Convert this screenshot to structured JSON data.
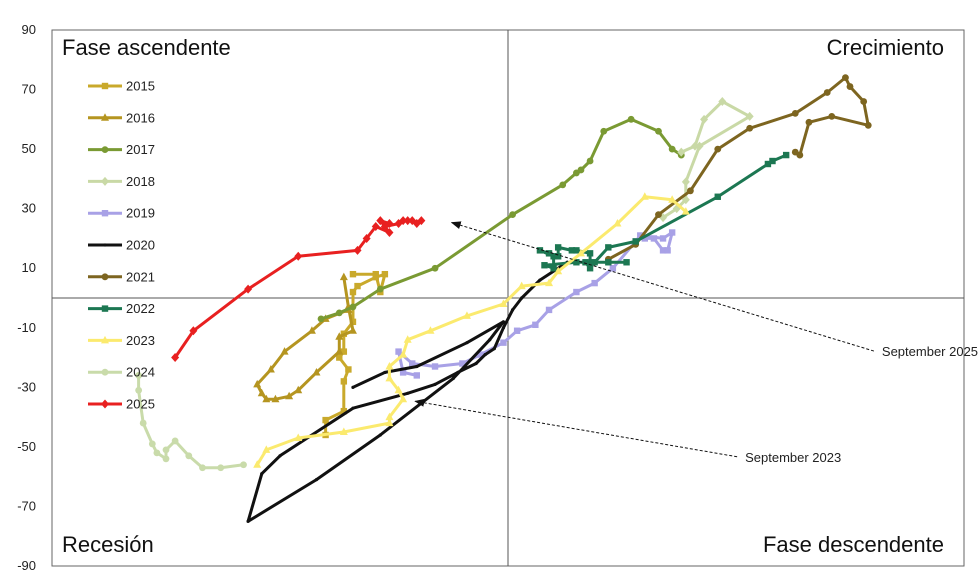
{
  "chart_data": {
    "type": "line",
    "xlabel": "",
    "ylabel": "",
    "ylim": [
      -90,
      90
    ],
    "xlim": [
      -100,
      100
    ],
    "yticks": [
      90,
      70,
      50,
      30,
      10,
      -10,
      -30,
      -50,
      -70,
      -90
    ],
    "grid": false,
    "legend": "left",
    "quadrant_labels": {
      "top_left": "Fase ascendente",
      "top_right": "Crecimiento",
      "bottom_left": "Recesión",
      "bottom_right": "Fase descendente"
    },
    "annotations": [
      {
        "text": "September 2025",
        "x": 82,
        "y": -19.5,
        "target": [
          -13,
          26
        ]
      },
      {
        "text": "September 2023",
        "x": 52,
        "y": -55,
        "target": [
          -21,
          -34
        ]
      }
    ],
    "series": [
      {
        "name": "2015",
        "color": "#c9a92b",
        "marker": "square",
        "points": [
          [
            -34,
            8
          ],
          [
            -29,
            8
          ],
          [
            -28,
            2
          ],
          [
            -27,
            8
          ],
          [
            -29,
            7
          ],
          [
            -33,
            4
          ],
          [
            -34,
            2
          ],
          [
            -34,
            -8
          ],
          [
            -36,
            -12
          ],
          [
            -36,
            -18
          ],
          [
            -37,
            -20
          ],
          [
            -35,
            -24
          ],
          [
            -36,
            -28
          ],
          [
            -36,
            -38
          ],
          [
            -40,
            -41
          ],
          [
            -40,
            -46
          ]
        ]
      },
      {
        "name": "2016",
        "color": "#b59520",
        "marker": "triangle",
        "points": [
          [
            -36,
            7
          ],
          [
            -35,
            -3
          ],
          [
            -34,
            -11
          ],
          [
            -37,
            -13
          ],
          [
            -37,
            -18
          ],
          [
            -42,
            -25
          ],
          [
            -46,
            -31
          ],
          [
            -48,
            -33
          ],
          [
            -51,
            -34
          ],
          [
            -53,
            -34
          ],
          [
            -54,
            -32
          ],
          [
            -55,
            -29
          ],
          [
            -52,
            -24
          ],
          [
            -49,
            -18
          ],
          [
            -43,
            -11
          ],
          [
            -40,
            -7
          ],
          [
            -35,
            -4
          ]
        ]
      },
      {
        "name": "2017",
        "color": "#7a9a33",
        "marker": "circle",
        "points": [
          [
            -41,
            -7
          ],
          [
            -37,
            -5
          ],
          [
            -34,
            -3
          ],
          [
            -28,
            3
          ],
          [
            -16,
            10
          ],
          [
            1,
            28
          ],
          [
            12,
            38
          ],
          [
            15,
            42
          ],
          [
            16,
            43
          ],
          [
            18,
            46
          ],
          [
            21,
            56
          ],
          [
            27,
            60
          ],
          [
            33,
            56
          ],
          [
            36,
            50
          ],
          [
            38,
            48
          ]
        ]
      },
      {
        "name": "2018",
        "color": "#c9d9a6",
        "marker": "diamond",
        "points": [
          [
            38,
            49
          ],
          [
            41,
            51
          ],
          [
            43,
            60
          ],
          [
            47,
            66
          ],
          [
            53,
            61
          ],
          [
            42,
            51
          ],
          [
            39,
            39
          ],
          [
            39,
            33
          ],
          [
            37,
            30
          ],
          [
            34,
            27
          ]
        ]
      },
      {
        "name": "2019",
        "color": "#a8a1e6",
        "marker": "square",
        "points": [
          [
            30,
            20
          ],
          [
            32,
            20
          ],
          [
            34,
            16
          ],
          [
            35,
            16
          ],
          [
            36,
            22
          ],
          [
            34,
            20
          ],
          [
            29,
            21
          ],
          [
            28,
            19
          ],
          [
            23,
            10
          ],
          [
            19,
            5
          ],
          [
            15,
            2
          ],
          [
            9,
            -4
          ],
          [
            6,
            -9
          ],
          [
            2,
            -11
          ],
          [
            -1,
            -15
          ],
          [
            -6,
            -19
          ],
          [
            -10,
            -22
          ],
          [
            -16,
            -23
          ],
          [
            -21,
            -22
          ],
          [
            -24,
            -18
          ],
          [
            -23,
            -25
          ],
          [
            -20,
            -26
          ]
        ]
      },
      {
        "name": "2020",
        "color": "#111111",
        "marker": "dot",
        "points": [
          [
            13,
            12
          ],
          [
            7,
            6
          ],
          [
            3,
            0
          ],
          [
            1,
            -4
          ],
          [
            -1,
            -10
          ],
          [
            -3,
            -17
          ],
          [
            -5,
            -19
          ],
          [
            -7,
            -22
          ],
          [
            -11,
            -25
          ],
          [
            -16,
            -29
          ],
          [
            -22,
            -32
          ],
          [
            -34,
            -37
          ],
          [
            -50,
            -53
          ],
          [
            -54,
            -59
          ],
          [
            -57,
            -75
          ],
          [
            -42,
            -61
          ],
          [
            -28,
            -46
          ],
          [
            -12,
            -27
          ],
          [
            -4,
            -14
          ],
          [
            -1,
            -8
          ],
          [
            -9,
            -15
          ],
          [
            -20,
            -23
          ],
          [
            -27,
            -25
          ],
          [
            -34,
            -30
          ]
        ]
      },
      {
        "name": "2021",
        "color": "#7d6520",
        "marker": "circle",
        "points": [
          [
            22,
            13
          ],
          [
            28,
            18
          ],
          [
            33,
            28
          ],
          [
            40,
            36
          ],
          [
            46,
            50
          ],
          [
            53,
            57
          ],
          [
            63,
            62
          ],
          [
            70,
            69
          ],
          [
            74,
            74
          ],
          [
            75,
            71
          ],
          [
            78,
            66
          ],
          [
            79,
            58
          ],
          [
            71,
            61
          ],
          [
            66,
            59
          ],
          [
            64,
            48
          ],
          [
            63,
            49
          ]
        ]
      },
      {
        "name": "2022",
        "color": "#1c7752",
        "marker": "square",
        "points": [
          [
            61,
            48
          ],
          [
            58,
            46
          ],
          [
            57,
            45
          ],
          [
            46,
            34
          ],
          [
            28,
            19
          ],
          [
            22,
            17
          ],
          [
            19,
            12
          ],
          [
            15,
            12
          ],
          [
            8,
            11
          ],
          [
            10,
            10
          ],
          [
            10,
            14
          ],
          [
            7,
            16
          ],
          [
            9,
            15
          ],
          [
            11,
            14
          ],
          [
            11,
            17
          ],
          [
            14,
            16
          ],
          [
            15,
            16
          ],
          [
            18,
            15
          ],
          [
            18,
            10
          ],
          [
            17,
            12
          ],
          [
            22,
            12
          ],
          [
            26,
            12
          ]
        ]
      },
      {
        "name": "2023",
        "color": "#fbea6e",
        "marker": "triangle",
        "points": [
          [
            39,
            29
          ],
          [
            36,
            33
          ],
          [
            30,
            34
          ],
          [
            24,
            25
          ],
          [
            16,
            15
          ],
          [
            11,
            9
          ],
          [
            9,
            5
          ],
          [
            3,
            4
          ],
          [
            -1,
            -2
          ],
          [
            -9,
            -6
          ],
          [
            -17,
            -11
          ],
          [
            -22,
            -14
          ],
          [
            -23,
            -19
          ],
          [
            -26,
            -23
          ],
          [
            -26,
            -27
          ],
          [
            -24,
            -31
          ],
          [
            -23,
            -34
          ],
          [
            -26,
            -40
          ],
          [
            -26,
            -42
          ],
          [
            -36,
            -45
          ],
          [
            -46,
            -47
          ],
          [
            -53,
            -51
          ],
          [
            -55,
            -56
          ]
        ]
      },
      {
        "name": "2024",
        "color": "#c9dbaa",
        "marker": "circle",
        "points": [
          [
            -58,
            -56
          ],
          [
            -63,
            -57
          ],
          [
            -67,
            -57
          ],
          [
            -70,
            -53
          ],
          [
            -73,
            -48
          ],
          [
            -75,
            -51
          ],
          [
            -75,
            -54
          ],
          [
            -77,
            -52
          ],
          [
            -78,
            -49
          ],
          [
            -80,
            -42
          ],
          [
            -81,
            -31
          ],
          [
            -81,
            -26
          ]
        ]
      },
      {
        "name": "2025",
        "color": "#e82020",
        "marker": "diamond",
        "points": [
          [
            -73,
            -20
          ],
          [
            -69,
            -11
          ],
          [
            -57,
            3
          ],
          [
            -46,
            14
          ],
          [
            -33,
            16
          ],
          [
            -31,
            20
          ],
          [
            -29,
            24
          ],
          [
            -26,
            22
          ],
          [
            -28,
            26
          ],
          [
            -26,
            25
          ],
          [
            -27,
            24
          ],
          [
            -24,
            25
          ],
          [
            -23,
            26
          ],
          [
            -22,
            26
          ],
          [
            -21,
            26
          ],
          [
            -20,
            25
          ],
          [
            -19,
            26
          ]
        ]
      }
    ]
  }
}
